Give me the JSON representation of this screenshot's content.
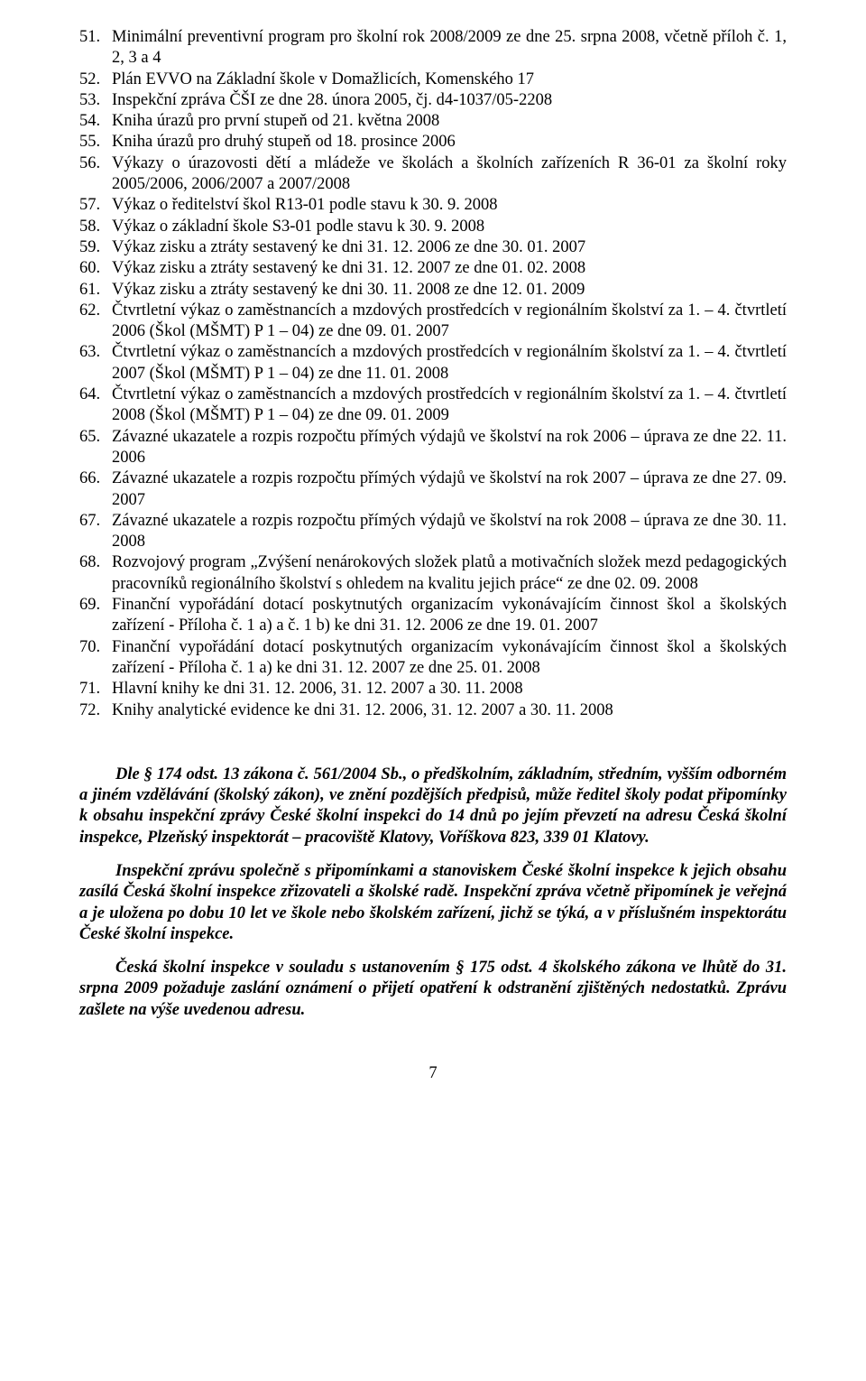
{
  "list": [
    {
      "n": "51.",
      "t": "Minimální preventivní program pro školní rok 2008/2009 ze dne 25. srpna 2008, včetně příloh č. 1, 2, 3 a 4"
    },
    {
      "n": "52.",
      "t": "Plán EVVO na Základní škole v Domažlicích, Komenského 17"
    },
    {
      "n": "53.",
      "t": "Inspekční zpráva ČŠI ze dne 28. února 2005, čj. d4-1037/05-2208"
    },
    {
      "n": "54.",
      "t": "Kniha úrazů pro první stupeň od 21. května 2008"
    },
    {
      "n": "55.",
      "t": "Kniha úrazů pro druhý stupeň od 18. prosince 2006"
    },
    {
      "n": "56.",
      "t": "Výkazy o úrazovosti dětí a mládeže ve školách a školních zařízeních R 36-01 za školní roky 2005/2006, 2006/2007 a 2007/2008"
    },
    {
      "n": "57.",
      "t": "Výkaz o ředitelství škol R13-01 podle stavu k 30. 9. 2008"
    },
    {
      "n": "58.",
      "t": "Výkaz o základní škole S3-01 podle stavu k 30. 9. 2008"
    },
    {
      "n": "59.",
      "t": "Výkaz zisku a ztráty sestavený ke dni 31. 12. 2006 ze dne 30. 01. 2007"
    },
    {
      "n": "60.",
      "t": "Výkaz zisku a ztráty sestavený ke dni 31. 12. 2007 ze dne 01. 02. 2008"
    },
    {
      "n": "61.",
      "t": "Výkaz zisku a ztráty sestavený ke dni 30. 11. 2008 ze dne 12. 01. 2009"
    },
    {
      "n": "62.",
      "t": "Čtvrtletní výkaz o zaměstnancích a mzdových prostředcích v regionálním školství za 1. – 4. čtvrtletí 2006 (Škol (MŠMT) P 1 – 04) ze dne 09. 01. 2007"
    },
    {
      "n": "63.",
      "t": "Čtvrtletní výkaz o zaměstnancích a mzdových prostředcích v regionálním školství za 1. – 4. čtvrtletí 2007 (Škol (MŠMT) P 1 – 04) ze dne 11. 01. 2008"
    },
    {
      "n": "64.",
      "t": "Čtvrtletní výkaz o zaměstnancích a mzdových prostředcích v regionálním školství za 1. – 4. čtvrtletí 2008 (Škol (MŠMT) P 1 – 04) ze dne 09. 01. 2009"
    },
    {
      "n": "65.",
      "t": "Závazné ukazatele a rozpis rozpočtu přímých výdajů ve školství na rok 2006 – úprava ze dne 22. 11. 2006"
    },
    {
      "n": "66.",
      "t": "Závazné ukazatele a rozpis rozpočtu přímých výdajů ve školství na rok 2007 – úprava ze dne 27. 09. 2007"
    },
    {
      "n": "67.",
      "t": "Závazné ukazatele a rozpis rozpočtu přímých výdajů ve školství na rok 2008 – úprava ze dne 30. 11. 2008"
    },
    {
      "n": "68.",
      "t": "Rozvojový program „Zvýšení nenárokových složek platů a motivačních složek mezd pedagogických pracovníků regionálního školství s ohledem na kvalitu jejich práce“ ze dne 02. 09. 2008"
    },
    {
      "n": "69.",
      "t": "Finanční vypořádání dotací poskytnutých organizacím vykonávajícím činnost škol a školských zařízení - Příloha č. 1 a) a č. 1 b) ke dni 31. 12. 2006 ze dne 19. 01. 2007"
    },
    {
      "n": "70.",
      "t": "Finanční vypořádání dotací poskytnutých organizacím vykonávajícím činnost škol a školských zařízení - Příloha č. 1 a) ke dni 31. 12. 2007 ze dne 25. 01. 2008"
    },
    {
      "n": "71.",
      "t": "Hlavní knihy ke dni 31. 12. 2006, 31. 12. 2007 a 30. 11. 2008"
    },
    {
      "n": "72.",
      "t": "Knihy analytické evidence ke dni 31. 12. 2006, 31. 12. 2007 a 30. 11. 2008"
    }
  ],
  "para1_lead": "Dle § 174 odst. 13 zákona č. 561/2004 Sb., o předškolním, základním, středním, vyšším odborném a jiném vzdělávání (školský zákon), ve znění pozdějších předpisů, může ředitel školy podat připomínky k obsahu inspekční zprávy České školní inspekci do 14 dnů po jejím převzetí na adresu Česká školní inspekce, Plzeňský inspektorát – pracoviště Klatovy, Voříškova 823, 339 01 Klatovy.",
  "para2": "Inspekční zprávu společně s připomínkami a stanoviskem České školní inspekce k jejich obsahu zasílá Česká školní inspekce zřizovateli a školské radě. Inspekční zpráva včetně připomínek je veřejná a je uložena po dobu 10 let ve škole nebo školském zařízení, jichž se týká, a v příslušném inspektorátu České školní inspekce.",
  "para3_bold": "Česká školní inspekce v souladu s ustanovením § 175 odst. 4 školského zákona ve lhůtě do 31. srpna 2009 požaduje zaslání oznámení o přijetí opatření k odstranění zjištěných nedostatků. Zprávu zašlete na výše uvedenou adresu.",
  "pagenum": "7"
}
